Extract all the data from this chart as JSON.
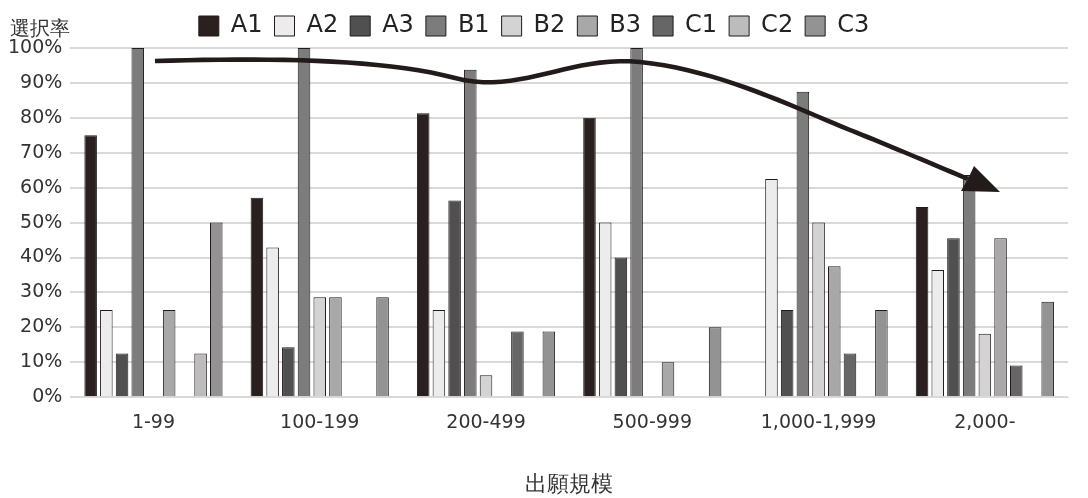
{
  "chart_data": {
    "type": "bar",
    "ylabel": "選択率",
    "xlabel": "出願規模",
    "categories": [
      "1-99",
      "100-199",
      "200-499",
      "500-999",
      "1,000-1,999",
      "2,000-"
    ],
    "series": [
      {
        "name": "A1",
        "color": "#2b2020",
        "values": [
          75,
          57.1,
          81.3,
          80,
          0,
          54.5
        ]
      },
      {
        "name": "A2",
        "color": "#ececec",
        "values": [
          25,
          42.9,
          25,
          50,
          62.5,
          36.4
        ]
      },
      {
        "name": "A3",
        "color": "#505050",
        "values": [
          12.5,
          14.3,
          56.3,
          40,
          25,
          45.5
        ]
      },
      {
        "name": "B1",
        "color": "#7c7c7c",
        "values": [
          100,
          100,
          93.8,
          100,
          87.5,
          63.6
        ]
      },
      {
        "name": "B2",
        "color": "#d3d3d3",
        "values": [
          0,
          28.6,
          6.3,
          0,
          50,
          18.2
        ]
      },
      {
        "name": "B3",
        "color": "#a8a8a8",
        "values": [
          25,
          28.6,
          0,
          10,
          37.5,
          45.5
        ]
      },
      {
        "name": "C1",
        "color": "#666666",
        "values": [
          0,
          0,
          18.8,
          0,
          12.5,
          9.1
        ]
      },
      {
        "name": "C2",
        "color": "#bcbcbc",
        "values": [
          12.5,
          0,
          0,
          0,
          0,
          0
        ]
      },
      {
        "name": "C3",
        "color": "#939393",
        "values": [
          50,
          28.6,
          18.8,
          20,
          25,
          27.3
        ]
      }
    ],
    "ylim": [
      0,
      100
    ],
    "yticks": [
      {
        "value": 0,
        "label": "0%"
      },
      {
        "value": 10,
        "label": "10%"
      },
      {
        "value": 20,
        "label": "20%"
      },
      {
        "value": 30,
        "label": "30%"
      },
      {
        "value": 40,
        "label": "40%"
      },
      {
        "value": 50,
        "label": "50%"
      },
      {
        "value": 60,
        "label": "60%"
      },
      {
        "value": 70,
        "label": "70%"
      },
      {
        "value": 80,
        "label": "80%"
      },
      {
        "value": 90,
        "label": "90%"
      },
      {
        "value": 100,
        "label": "100%"
      }
    ],
    "grid": "y",
    "legend": "top"
  }
}
